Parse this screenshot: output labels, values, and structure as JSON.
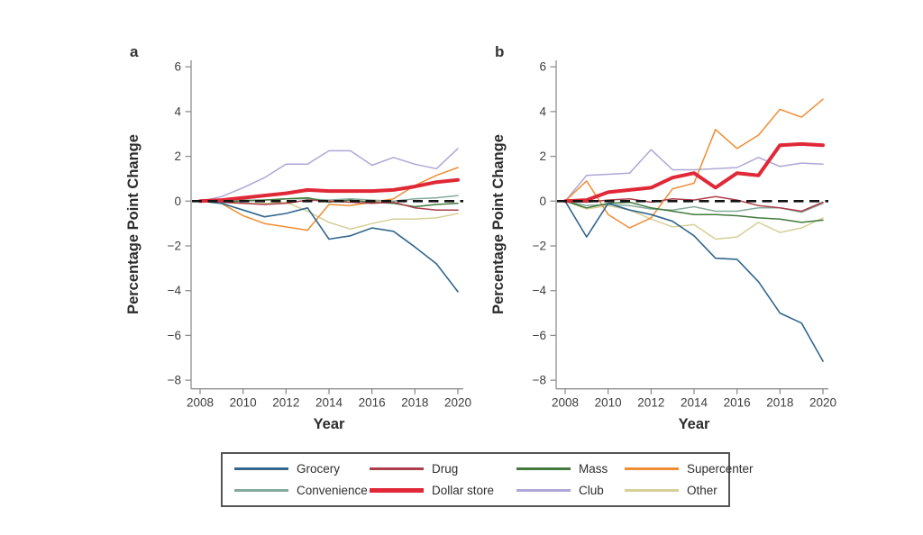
{
  "figure": {
    "background": "#ffffff",
    "axis_color": "#8f8f8f",
    "tick_label_color": "#3e3e3e",
    "title_color": "#2c2c2c",
    "zero_line_color": "#141414",
    "legend_border_color": "#54555a"
  },
  "chart_data": [
    {
      "type": "line",
      "panel_label": "a",
      "xlabel": "Year",
      "ylabel": "Percentage Point Change",
      "xlim": [
        2008,
        2020
      ],
      "ylim": [
        -8,
        6
      ],
      "grid": false,
      "x_ticks": [
        2008,
        2010,
        2012,
        2014,
        2016,
        2018,
        2020
      ],
      "x_tick_labels": [
        "2008",
        "2010",
        "2012",
        "2014",
        "2016",
        "2018",
        "2020"
      ],
      "y_ticks": [
        6,
        4,
        2,
        0,
        -2,
        -4,
        -6,
        -8
      ],
      "y_tick_labels": [
        "6",
        "4",
        "2",
        "0",
        "−2",
        "−4",
        "−6",
        "−8"
      ],
      "zero_reference_line": true,
      "x": [
        2008,
        2009,
        2010,
        2011,
        2012,
        2013,
        2014,
        2015,
        2016,
        2017,
        2018,
        2019,
        2020
      ],
      "series": [
        {
          "name": "Other",
          "color": "#d6cf97",
          "width": 1.5,
          "values": [
            0,
            -0.05,
            -0.1,
            -0.1,
            -0.05,
            -0.45,
            -0.95,
            -1.25,
            -1.0,
            -0.8,
            -0.8,
            -0.75,
            -0.55
          ]
        },
        {
          "name": "Club",
          "color": "#ada7d6",
          "width": 1.5,
          "values": [
            0,
            0.2,
            0.6,
            1.05,
            1.65,
            1.65,
            2.25,
            2.25,
            1.6,
            1.95,
            1.65,
            1.45,
            2.35
          ]
        },
        {
          "name": "Supercenter",
          "color": "#f08c33",
          "width": 1.5,
          "values": [
            0,
            -0.1,
            -0.65,
            -1.0,
            -1.15,
            -1.3,
            -0.15,
            -0.2,
            -0.05,
            0.1,
            0.7,
            1.15,
            1.5
          ]
        },
        {
          "name": "Convenience",
          "color": "#84aa9b",
          "width": 1.5,
          "values": [
            0,
            0,
            0.05,
            0.05,
            0.1,
            0.1,
            0.05,
            0.1,
            0.05,
            0,
            0.1,
            0.15,
            0.25
          ]
        },
        {
          "name": "Mass",
          "color": "#41793c",
          "width": 1.5,
          "values": [
            0,
            -0.05,
            0,
            0.05,
            0.1,
            0.15,
            -0.05,
            0.05,
            -0.05,
            -0.1,
            -0.25,
            -0.15,
            -0.1
          ]
        },
        {
          "name": "Drug",
          "color": "#ac3e4b",
          "width": 1.5,
          "values": [
            0,
            -0.05,
            -0.1,
            -0.15,
            -0.1,
            0.05,
            0,
            -0.05,
            -0.1,
            -0.05,
            -0.3,
            -0.4,
            -0.4
          ]
        },
        {
          "name": "Grocery",
          "color": "#31678d",
          "width": 1.6,
          "values": [
            0,
            -0.1,
            -0.4,
            -0.7,
            -0.55,
            -0.3,
            -1.7,
            -1.55,
            -1.2,
            -1.35,
            -2.05,
            -2.8,
            -4.05
          ]
        },
        {
          "name": "Dollar store",
          "color": "#e02837",
          "width": 4,
          "values": [
            0,
            0.05,
            0.15,
            0.25,
            0.35,
            0.5,
            0.45,
            0.45,
            0.45,
            0.5,
            0.65,
            0.85,
            0.95
          ]
        }
      ]
    },
    {
      "type": "line",
      "panel_label": "b",
      "xlabel": "Year",
      "ylabel": "Percentage Point Change",
      "xlim": [
        2008,
        2020
      ],
      "ylim": [
        -8,
        6
      ],
      "grid": false,
      "x_ticks": [
        2008,
        2010,
        2012,
        2014,
        2016,
        2018,
        2020
      ],
      "x_tick_labels": [
        "2008",
        "2010",
        "2012",
        "2014",
        "2016",
        "2018",
        "2020"
      ],
      "y_ticks": [
        6,
        4,
        2,
        0,
        -2,
        -4,
        -6,
        -8
      ],
      "y_tick_labels": [
        "6",
        "4",
        "2",
        "0",
        "−2",
        "−4",
        "−6",
        "−8"
      ],
      "zero_reference_line": true,
      "x": [
        2008,
        2009,
        2010,
        2011,
        2012,
        2013,
        2014,
        2015,
        2016,
        2017,
        2018,
        2019,
        2020
      ],
      "series": [
        {
          "name": "Other",
          "color": "#d6cf97",
          "width": 1.5,
          "values": [
            0,
            -0.35,
            -0.2,
            -0.4,
            -0.8,
            -1.15,
            -1.05,
            -1.7,
            -1.6,
            -0.95,
            -1.4,
            -1.2,
            -0.75
          ]
        },
        {
          "name": "Club",
          "color": "#ada7d6",
          "width": 1.5,
          "values": [
            0,
            1.15,
            1.2,
            1.25,
            2.3,
            1.4,
            1.4,
            1.45,
            1.5,
            1.95,
            1.55,
            1.7,
            1.65
          ]
        },
        {
          "name": "Supercenter",
          "color": "#f08c33",
          "width": 1.5,
          "values": [
            0,
            0.9,
            -0.6,
            -1.2,
            -0.75,
            0.55,
            0.8,
            3.2,
            2.35,
            2.95,
            4.1,
            3.75,
            4.55
          ]
        },
        {
          "name": "Convenience",
          "color": "#84aa9b",
          "width": 1.5,
          "values": [
            0,
            -0.2,
            -0.15,
            -0.2,
            -0.35,
            -0.4,
            -0.25,
            -0.45,
            -0.45,
            -0.3,
            -0.3,
            -0.5,
            -0.1
          ]
        },
        {
          "name": "Mass",
          "color": "#41793c",
          "width": 1.5,
          "values": [
            0,
            -0.3,
            -0.1,
            -0.05,
            -0.3,
            -0.45,
            -0.6,
            -0.6,
            -0.65,
            -0.75,
            -0.8,
            -0.95,
            -0.85
          ]
        },
        {
          "name": "Drug",
          "color": "#ac3e4b",
          "width": 1.5,
          "values": [
            0,
            -0.05,
            0.05,
            0.1,
            -0.05,
            0.1,
            0.05,
            0.2,
            0.05,
            -0.2,
            -0.3,
            -0.45,
            -0.05
          ]
        },
        {
          "name": "Grocery",
          "color": "#31678d",
          "width": 1.6,
          "values": [
            0,
            -1.6,
            -0.1,
            -0.4,
            -0.6,
            -0.9,
            -1.55,
            -2.55,
            -2.6,
            -3.6,
            -5.0,
            -5.45,
            -7.15
          ]
        },
        {
          "name": "Dollar store",
          "color": "#e02837",
          "width": 4,
          "values": [
            0,
            0.05,
            0.4,
            0.5,
            0.6,
            1.05,
            1.25,
            0.6,
            1.25,
            1.15,
            2.5,
            2.55,
            2.5
          ]
        }
      ]
    }
  ],
  "legend": {
    "entries": [
      {
        "label": "Grocery",
        "color": "#31678d",
        "thick": false
      },
      {
        "label": "Drug",
        "color": "#ac3e4b",
        "thick": false
      },
      {
        "label": "Mass",
        "color": "#41793c",
        "thick": false
      },
      {
        "label": "Supercenter",
        "color": "#f08c33",
        "thick": false
      },
      {
        "label": "Convenience",
        "color": "#84aa9b",
        "thick": false
      },
      {
        "label": "Dollar store",
        "color": "#e02837",
        "thick": true
      },
      {
        "label": "Club",
        "color": "#ada7d6",
        "thick": false
      },
      {
        "label": "Other",
        "color": "#d6cf97",
        "thick": false
      }
    ]
  }
}
